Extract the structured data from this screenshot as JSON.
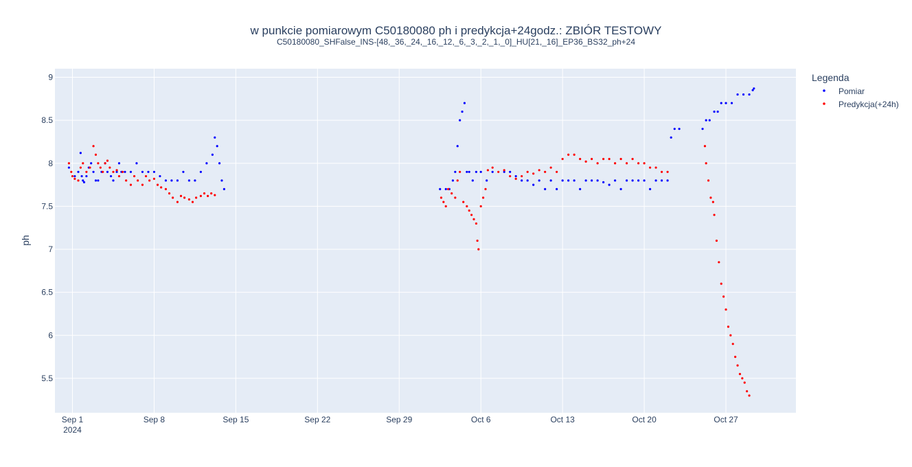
{
  "chart_data": {
    "type": "scatter",
    "title": "w punkcie pomiarowym C50180080 ph i predykcja+24godz.: ZBIÓR TESTOWY",
    "subtitle": "C50180080_SHFalse_INS-[48,_36,_24,_16,_12,_6,_3,_2,_1,_0]_HU[21,_16]_EP36_BS32_ph+24",
    "xlabel": "",
    "ylabel": "ph",
    "x_start_date": "2024-08-30",
    "xlim_days": [
      -1.5,
      62
    ],
    "ylim": [
      5.1,
      9.1
    ],
    "yticks": [
      5.5,
      6,
      6.5,
      7,
      7.5,
      8,
      8.5,
      9
    ],
    "ytick_labels": [
      "5.5",
      "6",
      "6.5",
      "7",
      "7.5",
      "8",
      "8.5",
      "9"
    ],
    "xticks_days": [
      0,
      7,
      14,
      21,
      28,
      35,
      42,
      49,
      56
    ],
    "xtick_labels": [
      "Sep 1",
      "Sep 8",
      "Sep 15",
      "Sep 22",
      "Sep 29",
      "Oct 6",
      "Oct 13",
      "Oct 20",
      "Oct 27"
    ],
    "xtick_year_label": "2024",
    "grid": true,
    "legend": {
      "title": "Legenda",
      "placement": "top-right-outside"
    },
    "series": [
      {
        "name": "Pomiar",
        "color": "#0000ff",
        "points": [
          [
            -0.3,
            7.95
          ],
          [
            0.2,
            7.85
          ],
          [
            0.5,
            7.9
          ],
          [
            0.7,
            8.12
          ],
          [
            0.8,
            7.85
          ],
          [
            0.9,
            7.8
          ],
          [
            1.0,
            7.78
          ],
          [
            1.2,
            7.85
          ],
          [
            1.4,
            7.95
          ],
          [
            1.6,
            8.0
          ],
          [
            1.8,
            7.9
          ],
          [
            2.0,
            7.8
          ],
          [
            2.2,
            7.8
          ],
          [
            2.5,
            7.9
          ],
          [
            2.8,
            8.0
          ],
          [
            3.0,
            7.9
          ],
          [
            3.3,
            7.85
          ],
          [
            3.5,
            7.8
          ],
          [
            3.8,
            7.9
          ],
          [
            4.0,
            8.0
          ],
          [
            4.2,
            7.9
          ],
          [
            4.5,
            7.9
          ],
          [
            5.0,
            7.9
          ],
          [
            5.5,
            8.0
          ],
          [
            6.0,
            7.9
          ],
          [
            6.5,
            7.9
          ],
          [
            7.0,
            7.9
          ],
          [
            7.5,
            7.85
          ],
          [
            8.0,
            7.8
          ],
          [
            8.5,
            7.8
          ],
          [
            9.0,
            7.8
          ],
          [
            9.5,
            7.9
          ],
          [
            10.0,
            7.8
          ],
          [
            10.5,
            7.8
          ],
          [
            11.0,
            7.9
          ],
          [
            11.5,
            8.0
          ],
          [
            12.0,
            8.1
          ],
          [
            12.2,
            8.3
          ],
          [
            12.4,
            8.2
          ],
          [
            12.6,
            8.0
          ],
          [
            12.8,
            7.8
          ],
          [
            13.0,
            7.7
          ],
          [
            31.5,
            7.7
          ],
          [
            32.0,
            7.7
          ],
          [
            32.3,
            7.7
          ],
          [
            32.6,
            7.8
          ],
          [
            32.8,
            7.9
          ],
          [
            33.0,
            8.2
          ],
          [
            33.2,
            8.5
          ],
          [
            33.4,
            8.6
          ],
          [
            33.6,
            8.7
          ],
          [
            33.8,
            7.9
          ],
          [
            34.0,
            7.9
          ],
          [
            34.3,
            7.8
          ],
          [
            34.6,
            7.9
          ],
          [
            35.0,
            7.9
          ],
          [
            35.5,
            7.8
          ],
          [
            36.0,
            7.9
          ],
          [
            37.0,
            7.9
          ],
          [
            37.5,
            7.9
          ],
          [
            38.0,
            7.85
          ],
          [
            38.5,
            7.8
          ],
          [
            39.0,
            7.8
          ],
          [
            39.5,
            7.75
          ],
          [
            40.0,
            7.8
          ],
          [
            40.5,
            7.7
          ],
          [
            41.0,
            7.8
          ],
          [
            41.5,
            7.7
          ],
          [
            42.0,
            7.8
          ],
          [
            42.5,
            7.8
          ],
          [
            43.0,
            7.8
          ],
          [
            43.5,
            7.7
          ],
          [
            44.0,
            7.8
          ],
          [
            44.5,
            7.8
          ],
          [
            45.0,
            7.8
          ],
          [
            45.5,
            7.78
          ],
          [
            46.0,
            7.75
          ],
          [
            46.5,
            7.8
          ],
          [
            47.0,
            7.7
          ],
          [
            47.5,
            7.8
          ],
          [
            48.0,
            7.8
          ],
          [
            48.5,
            7.8
          ],
          [
            49.0,
            7.8
          ],
          [
            49.5,
            7.7
          ],
          [
            50.0,
            7.8
          ],
          [
            50.5,
            7.8
          ],
          [
            51.0,
            7.8
          ],
          [
            51.3,
            8.3
          ],
          [
            51.6,
            8.4
          ],
          [
            52.0,
            8.4
          ],
          [
            54.0,
            8.4
          ],
          [
            54.3,
            8.5
          ],
          [
            54.6,
            8.5
          ],
          [
            55.0,
            8.6
          ],
          [
            55.3,
            8.6
          ],
          [
            55.6,
            8.7
          ],
          [
            56.0,
            8.7
          ],
          [
            56.5,
            8.7
          ],
          [
            57.0,
            8.8
          ],
          [
            57.5,
            8.8
          ],
          [
            58.0,
            8.8
          ],
          [
            58.3,
            8.85
          ],
          [
            58.4,
            8.87
          ]
        ]
      },
      {
        "name": "Predykcja(+24h)",
        "color": "#ff0000",
        "points": [
          [
            -0.3,
            8.0
          ],
          [
            -0.1,
            7.9
          ],
          [
            0.0,
            7.85
          ],
          [
            0.2,
            7.82
          ],
          [
            0.5,
            7.8
          ],
          [
            0.7,
            7.95
          ],
          [
            0.9,
            8.0
          ],
          [
            1.2,
            7.9
          ],
          [
            1.5,
            7.95
          ],
          [
            1.8,
            8.2
          ],
          [
            2.0,
            8.1
          ],
          [
            2.2,
            8.0
          ],
          [
            2.4,
            7.95
          ],
          [
            2.6,
            7.9
          ],
          [
            2.8,
            8.0
          ],
          [
            3.0,
            8.03
          ],
          [
            3.2,
            7.95
          ],
          [
            3.5,
            7.9
          ],
          [
            3.8,
            7.92
          ],
          [
            4.0,
            7.85
          ],
          [
            4.3,
            7.9
          ],
          [
            4.6,
            7.8
          ],
          [
            5.0,
            7.75
          ],
          [
            5.3,
            7.85
          ],
          [
            5.6,
            7.8
          ],
          [
            6.0,
            7.75
          ],
          [
            6.3,
            7.85
          ],
          [
            6.6,
            7.8
          ],
          [
            7.0,
            7.82
          ],
          [
            7.3,
            7.75
          ],
          [
            7.6,
            7.72
          ],
          [
            8.0,
            7.7
          ],
          [
            8.3,
            7.65
          ],
          [
            8.6,
            7.6
          ],
          [
            9.0,
            7.55
          ],
          [
            9.3,
            7.62
          ],
          [
            9.6,
            7.6
          ],
          [
            10.0,
            7.58
          ],
          [
            10.3,
            7.55
          ],
          [
            10.6,
            7.6
          ],
          [
            11.0,
            7.62
          ],
          [
            11.3,
            7.65
          ],
          [
            11.6,
            7.62
          ],
          [
            11.9,
            7.65
          ],
          [
            12.2,
            7.63
          ],
          [
            31.6,
            7.6
          ],
          [
            31.8,
            7.55
          ],
          [
            32.0,
            7.5
          ],
          [
            32.2,
            7.7
          ],
          [
            32.5,
            7.65
          ],
          [
            32.8,
            7.6
          ],
          [
            33.0,
            7.8
          ],
          [
            33.2,
            7.9
          ],
          [
            33.5,
            7.55
          ],
          [
            33.8,
            7.5
          ],
          [
            34.0,
            7.45
          ],
          [
            34.2,
            7.4
          ],
          [
            34.4,
            7.35
          ],
          [
            34.6,
            7.3
          ],
          [
            34.7,
            7.1
          ],
          [
            34.8,
            7.0
          ],
          [
            35.0,
            7.5
          ],
          [
            35.2,
            7.6
          ],
          [
            35.4,
            7.7
          ],
          [
            35.6,
            7.92
          ],
          [
            36.0,
            7.95
          ],
          [
            36.5,
            7.9
          ],
          [
            37.0,
            7.92
          ],
          [
            37.5,
            7.85
          ],
          [
            38.0,
            7.82
          ],
          [
            38.5,
            7.85
          ],
          [
            39.0,
            7.9
          ],
          [
            39.5,
            7.88
          ],
          [
            40.0,
            7.92
          ],
          [
            40.5,
            7.9
          ],
          [
            41.0,
            7.95
          ],
          [
            41.5,
            7.9
          ],
          [
            42.0,
            8.05
          ],
          [
            42.5,
            8.1
          ],
          [
            43.0,
            8.1
          ],
          [
            43.5,
            8.05
          ],
          [
            44.0,
            8.02
          ],
          [
            44.5,
            8.05
          ],
          [
            45.0,
            8.0
          ],
          [
            45.5,
            8.05
          ],
          [
            46.0,
            8.05
          ],
          [
            46.5,
            8.0
          ],
          [
            47.0,
            8.05
          ],
          [
            47.5,
            8.0
          ],
          [
            48.0,
            8.05
          ],
          [
            48.5,
            8.0
          ],
          [
            49.0,
            8.0
          ],
          [
            49.5,
            7.95
          ],
          [
            50.0,
            7.95
          ],
          [
            50.5,
            7.9
          ],
          [
            51.0,
            7.9
          ],
          [
            54.2,
            8.2
          ],
          [
            54.3,
            8.0
          ],
          [
            54.5,
            7.8
          ],
          [
            54.7,
            7.6
          ],
          [
            54.9,
            7.55
          ],
          [
            55.0,
            7.4
          ],
          [
            55.2,
            7.1
          ],
          [
            55.4,
            6.85
          ],
          [
            55.6,
            6.6
          ],
          [
            55.8,
            6.45
          ],
          [
            56.0,
            6.3
          ],
          [
            56.2,
            6.1
          ],
          [
            56.4,
            6.0
          ],
          [
            56.6,
            5.9
          ],
          [
            56.8,
            5.75
          ],
          [
            57.0,
            5.65
          ],
          [
            57.2,
            5.55
          ],
          [
            57.4,
            5.5
          ],
          [
            57.6,
            5.45
          ],
          [
            57.8,
            5.35
          ],
          [
            58.0,
            5.3
          ]
        ]
      }
    ]
  }
}
